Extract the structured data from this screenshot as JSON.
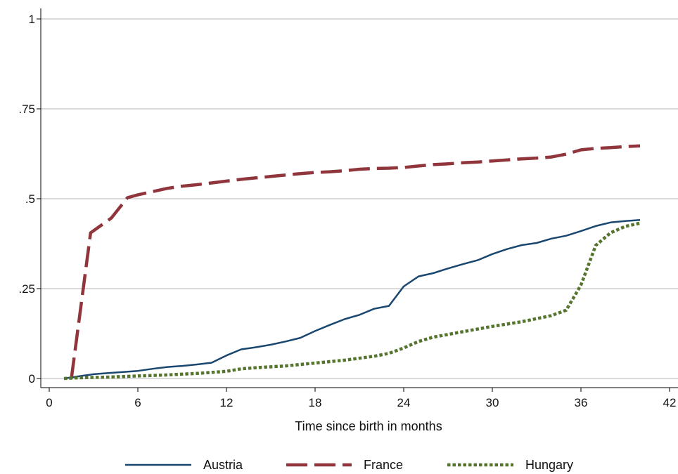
{
  "chart_data": {
    "type": "line",
    "title": "",
    "xlabel": "Time since birth in months",
    "ylabel": "",
    "xlim": [
      0,
      42
    ],
    "ylim": [
      0,
      1
    ],
    "x_ticks": [
      0,
      6,
      12,
      18,
      24,
      30,
      36,
      42
    ],
    "y_ticks": [
      0,
      0.25,
      0.5,
      0.75,
      1
    ],
    "y_tick_labels": [
      "0",
      ".25",
      ".5",
      ".75",
      "1"
    ],
    "grid": true,
    "legend_position": "bottom",
    "series": [
      {
        "name": "Austria",
        "color": "#1a476f",
        "style": "solid",
        "points": [
          [
            1,
            0
          ],
          [
            2,
            0.006
          ],
          [
            3,
            0.012
          ],
          [
            4,
            0.015
          ],
          [
            5,
            0.018
          ],
          [
            6,
            0.021
          ],
          [
            7,
            0.027
          ],
          [
            8,
            0.032
          ],
          [
            9,
            0.035
          ],
          [
            10,
            0.039
          ],
          [
            11,
            0.044
          ],
          [
            12,
            0.064
          ],
          [
            13,
            0.081
          ],
          [
            14,
            0.087
          ],
          [
            15,
            0.094
          ],
          [
            16,
            0.103
          ],
          [
            17,
            0.113
          ],
          [
            18,
            0.132
          ],
          [
            19,
            0.149
          ],
          [
            20,
            0.165
          ],
          [
            21,
            0.177
          ],
          [
            22,
            0.194
          ],
          [
            23,
            0.202
          ],
          [
            24,
            0.256
          ],
          [
            25,
            0.284
          ],
          [
            26,
            0.293
          ],
          [
            27,
            0.306
          ],
          [
            28,
            0.318
          ],
          [
            29,
            0.329
          ],
          [
            30,
            0.346
          ],
          [
            31,
            0.36
          ],
          [
            32,
            0.371
          ],
          [
            33,
            0.377
          ],
          [
            34,
            0.389
          ],
          [
            35,
            0.397
          ],
          [
            36,
            0.41
          ],
          [
            37,
            0.424
          ],
          [
            38,
            0.434
          ],
          [
            39,
            0.438
          ],
          [
            40,
            0.441
          ]
        ]
      },
      {
        "name": "France",
        "color": "#90353b",
        "style": "dashed",
        "points": [
          [
            1.5,
            0
          ],
          [
            2.8,
            0.405
          ],
          [
            4.2,
            0.446
          ],
          [
            5.3,
            0.503
          ],
          [
            6,
            0.511
          ],
          [
            7,
            0.52
          ],
          [
            8,
            0.529
          ],
          [
            9,
            0.535
          ],
          [
            10,
            0.539
          ],
          [
            11,
            0.544
          ],
          [
            12,
            0.549
          ],
          [
            13,
            0.554
          ],
          [
            14,
            0.558
          ],
          [
            15,
            0.562
          ],
          [
            16,
            0.566
          ],
          [
            17,
            0.57
          ],
          [
            18,
            0.573
          ],
          [
            19,
            0.575
          ],
          [
            20,
            0.578
          ],
          [
            21,
            0.582
          ],
          [
            22,
            0.584
          ],
          [
            23,
            0.585
          ],
          [
            24,
            0.587
          ],
          [
            25,
            0.591
          ],
          [
            26,
            0.595
          ],
          [
            27,
            0.597
          ],
          [
            28,
            0.6
          ],
          [
            29,
            0.602
          ],
          [
            30,
            0.605
          ],
          [
            31,
            0.608
          ],
          [
            32,
            0.611
          ],
          [
            33,
            0.613
          ],
          [
            34,
            0.616
          ],
          [
            35,
            0.624
          ],
          [
            36,
            0.636
          ],
          [
            37,
            0.64
          ],
          [
            38,
            0.642
          ],
          [
            39,
            0.645
          ],
          [
            40,
            0.647
          ]
        ]
      },
      {
        "name": "Hungary",
        "color": "#55752f",
        "style": "dotted",
        "points": [
          [
            1,
            0
          ],
          [
            2,
            0.002
          ],
          [
            4,
            0.004
          ],
          [
            6,
            0.007
          ],
          [
            8,
            0.01
          ],
          [
            10,
            0.014
          ],
          [
            12,
            0.02
          ],
          [
            13,
            0.027
          ],
          [
            14,
            0.03
          ],
          [
            16,
            0.035
          ],
          [
            18,
            0.043
          ],
          [
            20,
            0.051
          ],
          [
            22,
            0.062
          ],
          [
            23,
            0.07
          ],
          [
            24,
            0.085
          ],
          [
            25,
            0.103
          ],
          [
            26,
            0.115
          ],
          [
            28,
            0.13
          ],
          [
            30,
            0.145
          ],
          [
            32,
            0.158
          ],
          [
            34,
            0.175
          ],
          [
            35,
            0.19
          ],
          [
            36,
            0.26
          ],
          [
            37,
            0.37
          ],
          [
            38,
            0.405
          ],
          [
            39,
            0.423
          ],
          [
            40,
            0.432
          ]
        ]
      }
    ]
  }
}
